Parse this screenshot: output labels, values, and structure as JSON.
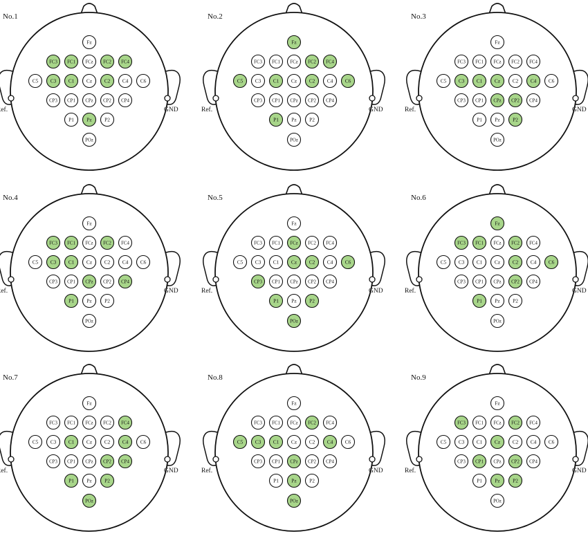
{
  "colors": {
    "selected": "#a8d68a",
    "unselected": "#ffffff",
    "stroke": "#111111"
  },
  "reference_label": "Ref.",
  "ground_label": "GND",
  "montage_rows": [
    [
      "Fz"
    ],
    [
      "FC3",
      "FC1",
      "FCz",
      "FC2",
      "FC4"
    ],
    [
      "C5",
      "C3",
      "C1",
      "Cz",
      "C2",
      "C4",
      "C6"
    ],
    [
      "CP3",
      "CP1",
      "CPz",
      "CP2",
      "CP4"
    ],
    [
      "P1",
      "Pz",
      "P2"
    ],
    [
      "POz"
    ]
  ],
  "panels": [
    {
      "label": "No.1",
      "selected": [
        "FC3",
        "FC1",
        "FC2",
        "FC4",
        "C3",
        "C1",
        "C2",
        "Pz"
      ]
    },
    {
      "label": "No.2",
      "selected": [
        "Fz",
        "FC2",
        "FC4",
        "C5",
        "C1",
        "C2",
        "C6",
        "P1"
      ]
    },
    {
      "label": "No.3",
      "selected": [
        "C3",
        "C1",
        "Cz",
        "C4",
        "CPz",
        "CP2",
        "P2"
      ]
    },
    {
      "label": "No.4",
      "selected": [
        "FC3",
        "FC1",
        "FC2",
        "C3",
        "C1",
        "CPz",
        "CP4",
        "P1"
      ]
    },
    {
      "label": "No.5",
      "selected": [
        "FCz",
        "Cz",
        "C2",
        "C6",
        "CP3",
        "P1",
        "P2",
        "POz"
      ]
    },
    {
      "label": "No.6",
      "selected": [
        "Fz",
        "FC3",
        "FC1",
        "FC2",
        "C2",
        "C6",
        "CP2",
        "P1"
      ]
    },
    {
      "label": "No.7",
      "selected": [
        "FC4",
        "C1",
        "C4",
        "CP2",
        "CP4",
        "P1",
        "P2",
        "POz"
      ]
    },
    {
      "label": "No.8",
      "selected": [
        "FC2",
        "C5",
        "C3",
        "C1",
        "C4",
        "CPz",
        "Pz",
        "POz"
      ]
    },
    {
      "label": "No.9",
      "selected": [
        "FC3",
        "FC2",
        "Cz",
        "CP1",
        "CP2",
        "Pz",
        "P2"
      ]
    }
  ]
}
